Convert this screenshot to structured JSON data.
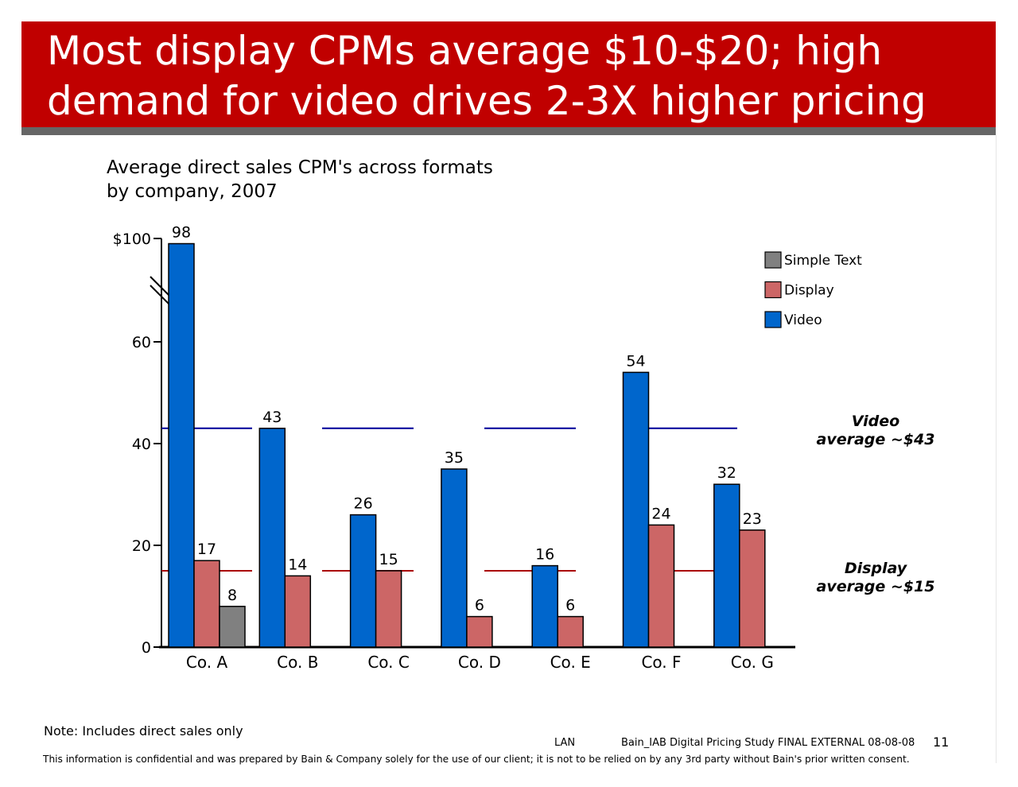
{
  "slide": {
    "title": "Most display CPMs average $10-$20; high\ndemand for video drives 2-3X higher pricing",
    "note": "Note: Includes direct sales only",
    "footer_code": "LAN",
    "footer_study": "Bain_IAB Digital Pricing Study FINAL EXTERNAL 08-08-08",
    "page_number": "11",
    "disclaimer": "This information is confidential and was prepared by Bain & Company solely for the use of our client; it is not to be relied on by any 3rd party without Bain's prior written consent."
  },
  "colors": {
    "banner": "#c00000",
    "video": "#0066cc",
    "display": "#cc6666",
    "simple_text": "#808080",
    "video_avg_line": "#000099",
    "display_avg_line": "#aa0000"
  },
  "chart_data": {
    "type": "bar",
    "title": "Average direct sales CPM's across formats\nby company, 2007",
    "categories": [
      "Co. A",
      "Co. B",
      "Co. C",
      "Co. D",
      "Co. E",
      "Co. F",
      "Co. G"
    ],
    "series": [
      {
        "name": "Video",
        "color": "#0066cc",
        "values": [
          98,
          43,
          26,
          35,
          16,
          54,
          32
        ]
      },
      {
        "name": "Display",
        "color": "#cc6666",
        "values": [
          17,
          14,
          15,
          6,
          6,
          24,
          23
        ]
      },
      {
        "name": "Simple Text",
        "color": "#808080",
        "values": [
          8,
          null,
          null,
          null,
          null,
          null,
          null
        ]
      }
    ],
    "legend": {
      "order": [
        "Simple Text",
        "Display",
        "Video"
      ],
      "position": "top-right"
    },
    "y_ticks": [
      {
        "value": 0,
        "label": "0"
      },
      {
        "value": 20,
        "label": "20"
      },
      {
        "value": 40,
        "label": "40"
      },
      {
        "value": 60,
        "label": "60"
      },
      {
        "value": 100,
        "label": "$100"
      }
    ],
    "axis_break": {
      "from": 60,
      "to": 100
    },
    "ylim": [
      0,
      100
    ],
    "reference_lines": [
      {
        "series": "Video",
        "value": 43,
        "label": "Video\naverage ~$43"
      },
      {
        "series": "Display",
        "value": 15,
        "label": "Display\naverage ~$15"
      }
    ]
  }
}
